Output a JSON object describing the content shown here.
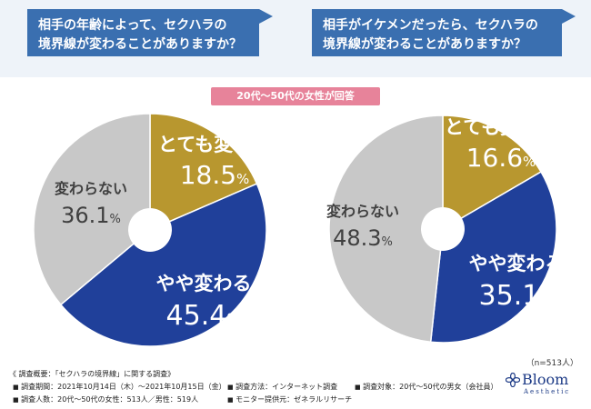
{
  "header_left": {
    "line1": "相手の年齢によって、セクハラの",
    "line2": "境界線が変わることがありますか？"
  },
  "header_right": {
    "line1": "相手がイケメンだったら、セクハラの",
    "line2": "境界線が変わることがありますか？"
  },
  "respondent_tag": "20代〜50代の女性が回答",
  "sample_note": "（n=513人）",
  "colors": {
    "gold": "#b8972f",
    "blue": "#20409a",
    "gray": "#c8c8c8",
    "banner": "#3a6fb0",
    "tag": "#e7839a"
  },
  "chart_data": [
    {
      "type": "pie",
      "title": "相手の年齢によって、セクハラの境界線が変わることがありますか？",
      "categories": [
        "とても変わる",
        "やや変わる",
        "変わらない"
      ],
      "values": [
        18.5,
        45.4,
        36.1
      ],
      "labels": [
        "18.5",
        "45.4",
        "36.1"
      ],
      "units": "%"
    },
    {
      "type": "pie",
      "title": "相手がイケメンだったら、セクハラの境界線が変わることがありますか？",
      "categories": [
        "とても変わる",
        "やや変わる",
        "変わらない"
      ],
      "values": [
        16.6,
        35.1,
        48.3
      ],
      "labels": [
        "16.6",
        "35.1",
        "48.3"
      ],
      "units": "%"
    }
  ],
  "footer": {
    "title": "《 調査概要：「セクハラの境界線」に関する調査》",
    "period": "調査期間：2021年10月14日（木）〜2021年10月15日（金）",
    "method": "調査方法：インターネット調査",
    "target": "調査対象：20代〜50代の男女（会社員）",
    "count": "調査人数：20代〜50代の女性：513人／男性：519人",
    "provider": "モニター提供元：ゼネラルリサーチ"
  },
  "logo": {
    "name": "Bloom",
    "sub": "Aesthetic"
  }
}
